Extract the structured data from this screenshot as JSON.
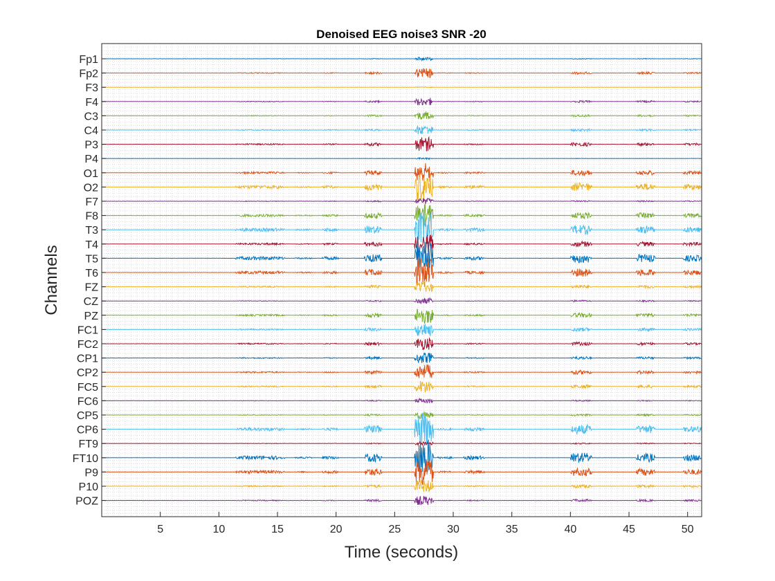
{
  "chart_data": {
    "type": "line",
    "title": "Denoised EEG noise3 SNR -20",
    "xlabel": "Time (seconds)",
    "ylabel": "Channels",
    "xlim": [
      0,
      51.2
    ],
    "xticks": [
      5,
      10,
      15,
      20,
      25,
      30,
      35,
      40,
      45,
      50
    ],
    "xtick_labels": [
      "5",
      "10",
      "15",
      "20",
      "25",
      "30",
      "35",
      "40",
      "45",
      "50"
    ],
    "grid": "minor dotted",
    "channels": [
      "Fp1",
      "Fp2",
      "F3",
      "F4",
      "C3",
      "C4",
      "P3",
      "P4",
      "O1",
      "O2",
      "F7",
      "F8",
      "T3",
      "T4",
      "T5",
      "T6",
      "FZ",
      "CZ",
      "PZ",
      "FC1",
      "FC2",
      "CP1",
      "CP2",
      "FC5",
      "FC6",
      "CP5",
      "CP6",
      "FT9",
      "FT10",
      "P9",
      "P10",
      "POZ"
    ],
    "series_colors": [
      "#0072BD",
      "#D95319",
      "#EDB120",
      "#7E2F8E",
      "#77AC30",
      "#4DBEEE",
      "#A2142F"
    ],
    "channel_amplitude": [
      0.2,
      0.6,
      0.05,
      0.5,
      0.5,
      0.6,
      0.9,
      0.1,
      1.3,
      2.0,
      0.4,
      1.5,
      2.2,
      1.3,
      2.3,
      1.9,
      0.8,
      0.4,
      1.1,
      0.9,
      0.8,
      0.7,
      1.0,
      0.8,
      0.3,
      0.5,
      2.2,
      0.3,
      2.4,
      2.0,
      0.8,
      0.6
    ],
    "bursts": [
      {
        "start": 11.4,
        "end": 15.6,
        "level": 0.35
      },
      {
        "start": 16.5,
        "end": 18.0,
        "level": 0.15
      },
      {
        "start": 18.8,
        "end": 20.2,
        "level": 0.3
      },
      {
        "start": 22.4,
        "end": 23.9,
        "level": 0.8
      },
      {
        "start": 26.7,
        "end": 28.3,
        "level": 3.5
      },
      {
        "start": 28.6,
        "end": 30.0,
        "level": 0.2
      },
      {
        "start": 30.9,
        "end": 32.7,
        "level": 0.35
      },
      {
        "start": 40.0,
        "end": 41.8,
        "level": 0.95
      },
      {
        "start": 45.6,
        "end": 47.2,
        "level": 0.8
      },
      {
        "start": 49.6,
        "end": 51.2,
        "level": 0.6
      }
    ]
  }
}
